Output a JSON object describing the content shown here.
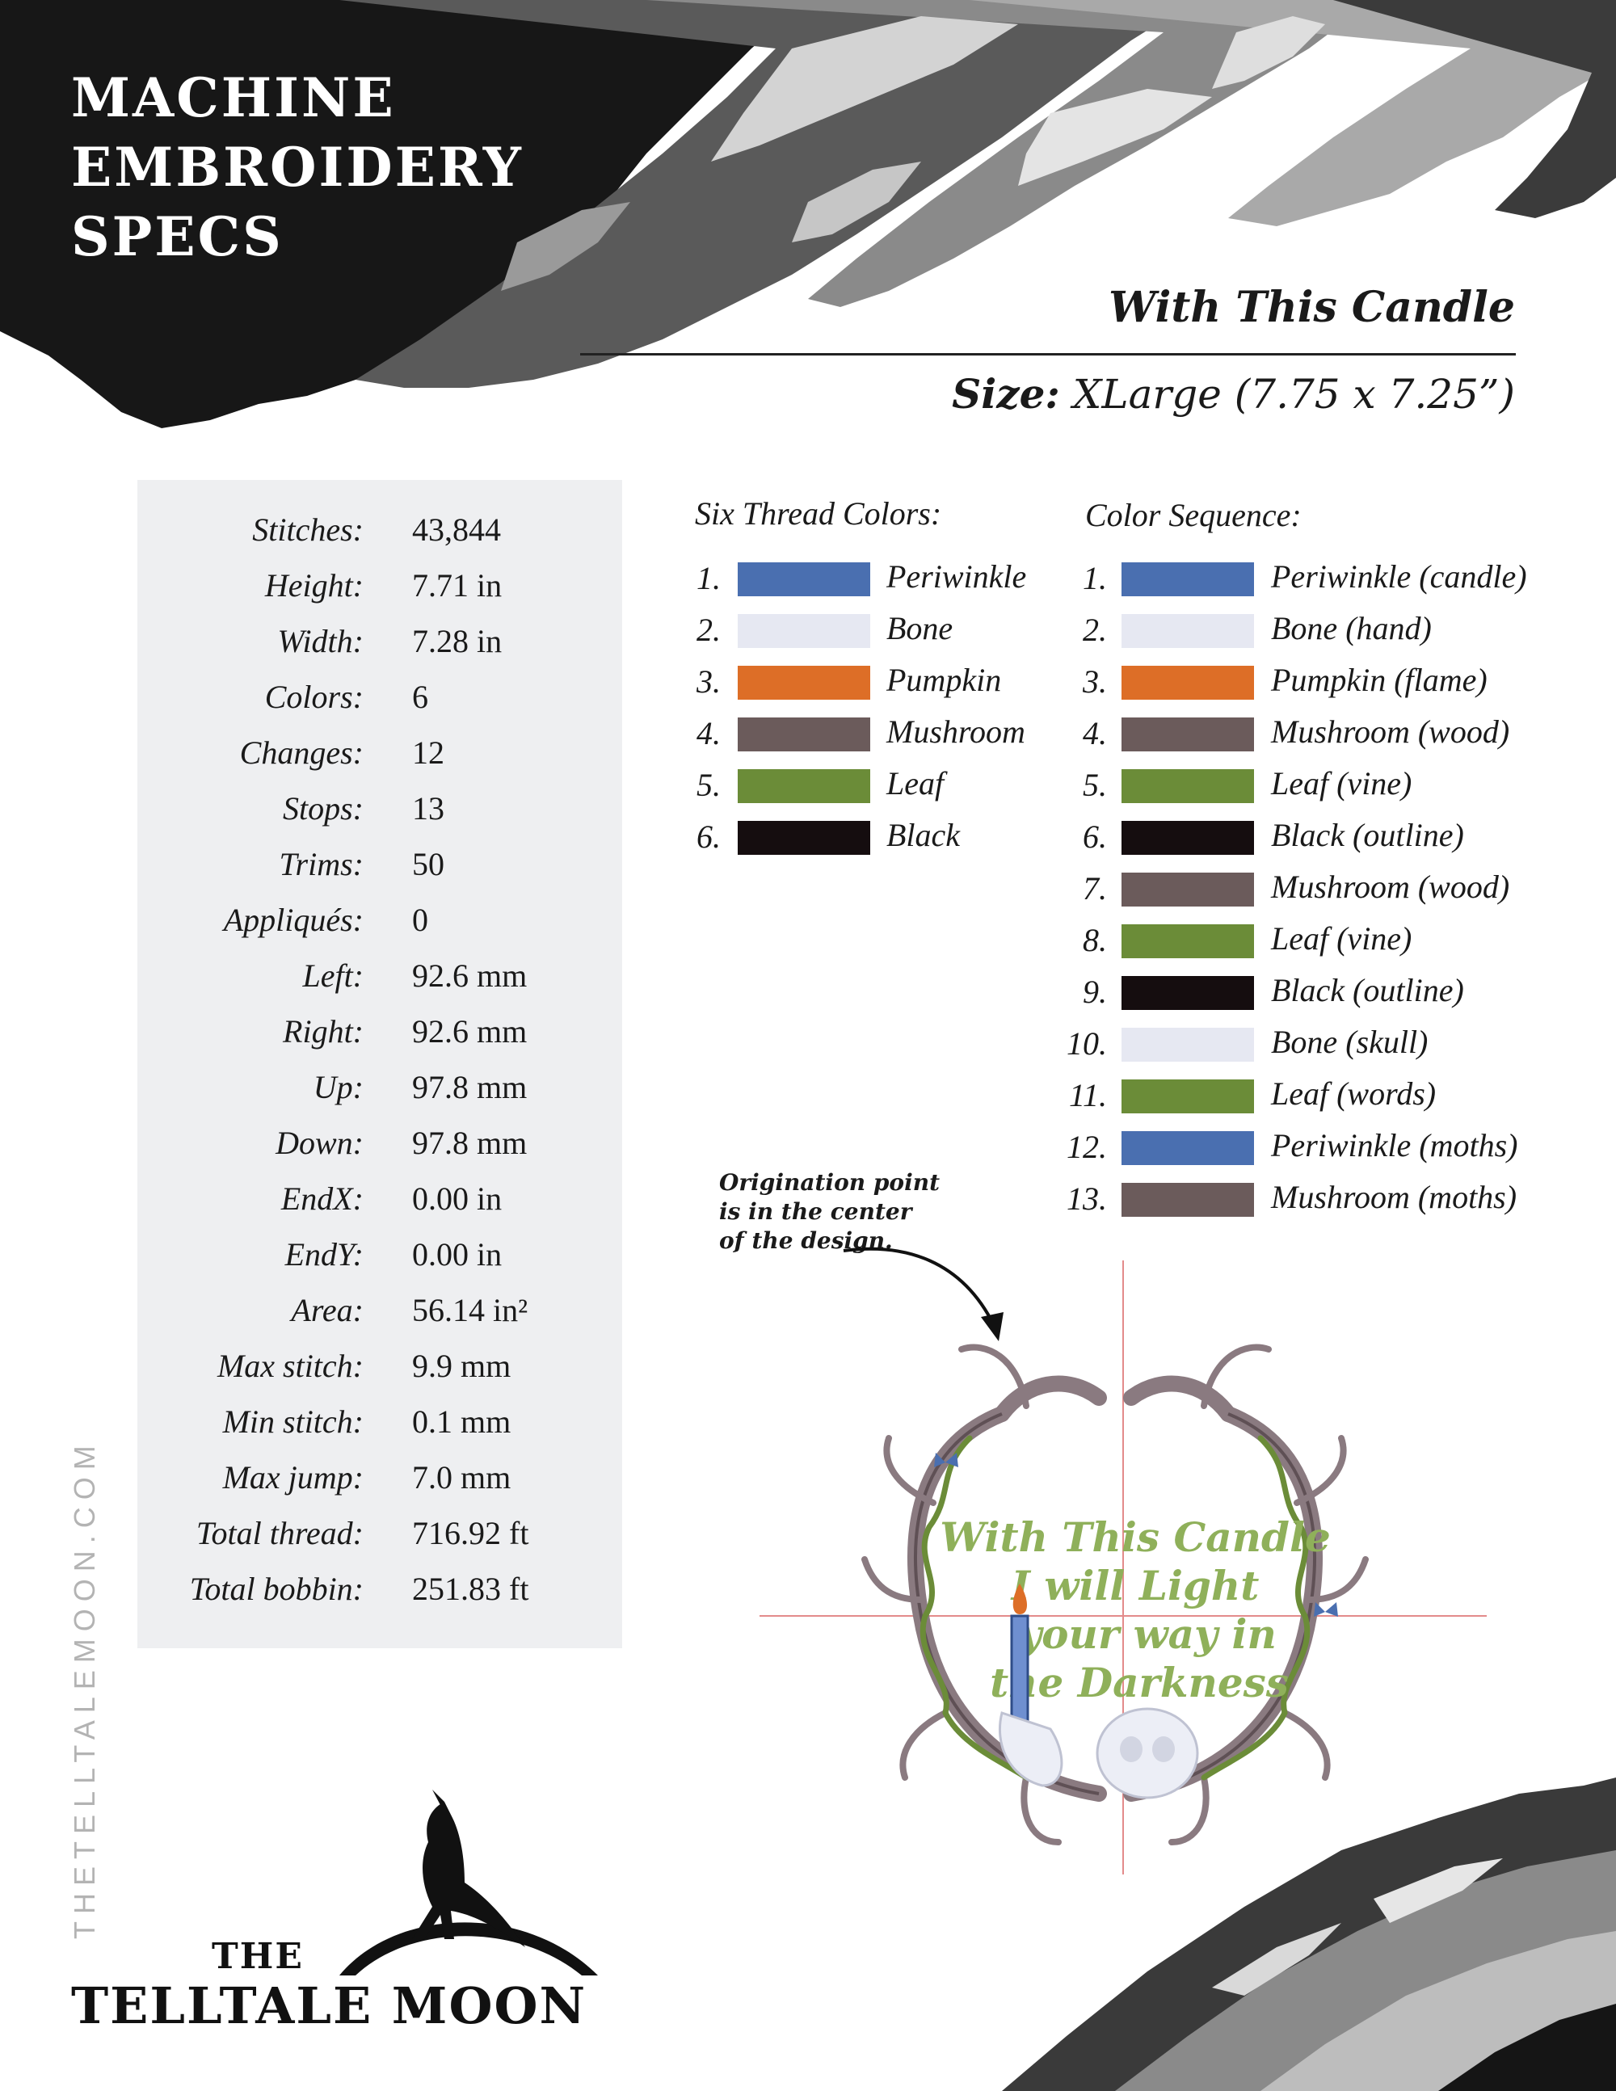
{
  "header": {
    "title_lines": [
      "MACHINE",
      "EMBROIDERY",
      "SPECS"
    ]
  },
  "design": {
    "name": "With This Candle",
    "size_label": "Size:",
    "size_value": "XLarge (7.75 x 7.25”)"
  },
  "specs": [
    {
      "label": "Stitches:",
      "value": "43,844"
    },
    {
      "label": "Height:",
      "value": "7.71 in"
    },
    {
      "label": "Width:",
      "value": "7.28 in"
    },
    {
      "label": "Colors:",
      "value": "6"
    },
    {
      "label": "Changes:",
      "value": "12"
    },
    {
      "label": "Stops:",
      "value": "13"
    },
    {
      "label": "Trims:",
      "value": "50"
    },
    {
      "label": "Appliqués:",
      "value": "0"
    },
    {
      "label": "Left:",
      "value": "92.6 mm"
    },
    {
      "label": "Right:",
      "value": "92.6 mm"
    },
    {
      "label": "Up:",
      "value": "97.8 mm"
    },
    {
      "label": "Down:",
      "value": "97.8 mm"
    },
    {
      "label": "EndX:",
      "value": "0.00 in"
    },
    {
      "label": "EndY:",
      "value": "0.00 in"
    },
    {
      "label": "Area:",
      "value": "56.14 in²"
    },
    {
      "label": "Max stitch:",
      "value": "9.9 mm"
    },
    {
      "label": "Min stitch:",
      "value": "0.1 mm"
    },
    {
      "label": "Max jump:",
      "value": "7.0 mm"
    },
    {
      "label": "Total thread:",
      "value": "716.92 ft"
    },
    {
      "label": "Total bobbin:",
      "value": "251.83 ft"
    }
  ],
  "thread_colors": {
    "title": "Six Thread Colors:",
    "items": [
      {
        "num": "1.",
        "name": "Periwinkle",
        "color": "#4a6fb0"
      },
      {
        "num": "2.",
        "name": "Bone",
        "color": "#e6e8f2"
      },
      {
        "num": "3.",
        "name": "Pumpkin",
        "color": "#dd6e27"
      },
      {
        "num": "4.",
        "name": "Mushroom",
        "color": "#6b5b5b"
      },
      {
        "num": "5.",
        "name": "Leaf",
        "color": "#6b8c38"
      },
      {
        "num": "6.",
        "name": "Black",
        "color": "#150d0f"
      }
    ]
  },
  "color_sequence": {
    "title": "Color Sequence:",
    "items": [
      {
        "num": "1.",
        "name": "Periwinkle (candle)",
        "color": "#4a6fb0"
      },
      {
        "num": "2.",
        "name": "Bone (hand)",
        "color": "#e6e8f2"
      },
      {
        "num": "3.",
        "name": "Pumpkin (flame)",
        "color": "#dd6e27"
      },
      {
        "num": "4.",
        "name": "Mushroom (wood)",
        "color": "#6b5b5b"
      },
      {
        "num": "5.",
        "name": "Leaf (vine)",
        "color": "#6b8c38"
      },
      {
        "num": "6.",
        "name": "Black (outline)",
        "color": "#150d0f"
      },
      {
        "num": "7.",
        "name": "Mushroom (wood)",
        "color": "#6b5b5b"
      },
      {
        "num": "8.",
        "name": "Leaf (vine)",
        "color": "#6b8c38"
      },
      {
        "num": "9.",
        "name": "Black (outline)",
        "color": "#150d0f"
      },
      {
        "num": "10.",
        "name": "Bone (skull)",
        "color": "#e6e8f2"
      },
      {
        "num": "11.",
        "name": "Leaf (words)",
        "color": "#6b8c38"
      },
      {
        "num": "12.",
        "name": "Periwinkle (moths)",
        "color": "#4a6fb0"
      },
      {
        "num": "13.",
        "name": "Mushroom (moths)",
        "color": "#6b5b5b"
      }
    ]
  },
  "origin_note": {
    "lines": [
      "Origination point",
      "is in the center",
      "of the design."
    ]
  },
  "preview": {
    "text_lines": [
      "With This Candle",
      "I will Light",
      "your way in",
      "the Darkness"
    ]
  },
  "side_url": "THETELLTALEMOON.COM",
  "logo": {
    "line1": "THE",
    "line2": "TELLTALE MOON"
  }
}
